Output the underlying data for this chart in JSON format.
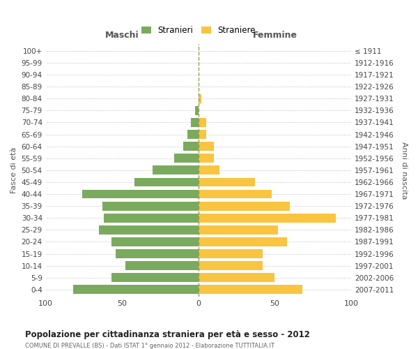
{
  "age_groups": [
    "100+",
    "95-99",
    "90-94",
    "85-89",
    "80-84",
    "75-79",
    "70-74",
    "65-69",
    "60-64",
    "55-59",
    "50-54",
    "45-49",
    "40-44",
    "35-39",
    "30-34",
    "25-29",
    "20-24",
    "15-19",
    "10-14",
    "5-9",
    "0-4"
  ],
  "birth_years": [
    "≤ 1911",
    "1912-1916",
    "1917-1921",
    "1922-1926",
    "1927-1931",
    "1932-1936",
    "1937-1941",
    "1942-1946",
    "1947-1951",
    "1952-1956",
    "1957-1961",
    "1962-1966",
    "1967-1971",
    "1972-1976",
    "1977-1981",
    "1982-1986",
    "1987-1991",
    "1992-1996",
    "1997-2001",
    "2002-2006",
    "2007-2011"
  ],
  "males": [
    0,
    0,
    0,
    0,
    0,
    2,
    5,
    7,
    10,
    16,
    30,
    42,
    76,
    63,
    62,
    65,
    57,
    54,
    48,
    57,
    82
  ],
  "females": [
    0,
    0,
    0,
    0,
    2,
    0,
    5,
    5,
    10,
    10,
    14,
    37,
    48,
    60,
    90,
    52,
    58,
    42,
    42,
    50,
    68
  ],
  "male_color": "#7aaa5d",
  "female_color": "#f9c440",
  "background_color": "#ffffff",
  "grid_color": "#cccccc",
  "title": "Popolazione per cittadinanza straniera per età e sesso - 2012",
  "subtitle": "COMUNE DI PREVALLE (BS) - Dati ISTAT 1° gennaio 2012 - Elaborazione TUTTITALIA.IT",
  "xlabel_left": "Maschi",
  "xlabel_right": "Femmine",
  "ylabel_left": "Fasce di età",
  "ylabel_right": "Anni di nascita",
  "legend_male": "Stranieri",
  "legend_female": "Straniere",
  "xlim": 100,
  "dashed_line_color": "#999955"
}
